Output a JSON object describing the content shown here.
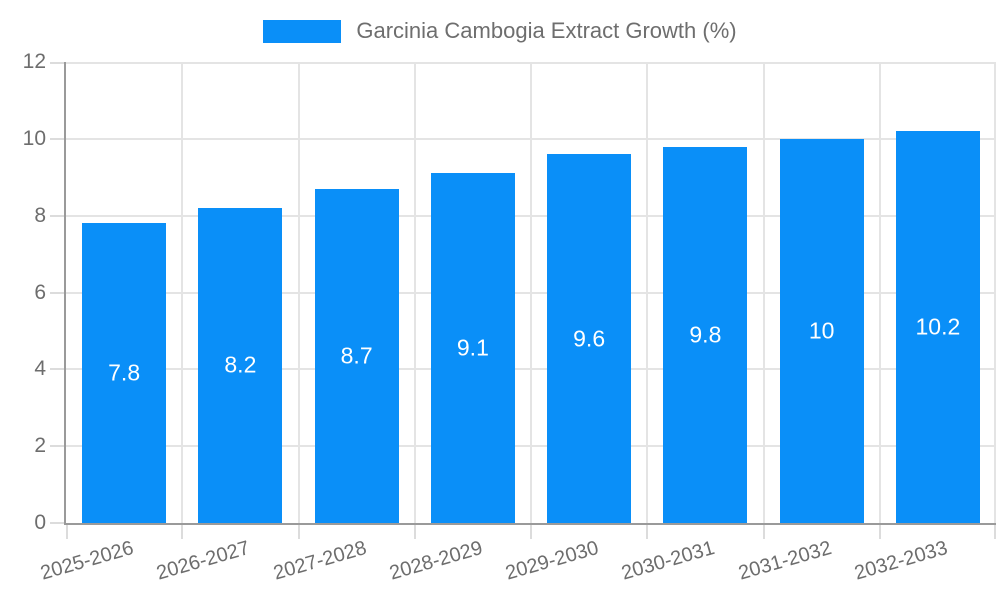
{
  "legend": {
    "label": "Garcinia Cambogia Extract Growth (%)"
  },
  "chart_data": {
    "type": "bar",
    "title": "Garcinia Cambogia Extract Growth (%)",
    "categories": [
      "2025-2026",
      "2026-2027",
      "2027-2028",
      "2028-2029",
      "2029-2030",
      "2030-2031",
      "2031-2032",
      "2032-2033"
    ],
    "values": [
      7.8,
      8.2,
      8.7,
      9.1,
      9.6,
      9.8,
      10,
      10.2
    ],
    "value_labels": [
      "7.8",
      "8.2",
      "8.7",
      "9.1",
      "9.6",
      "9.8",
      "10",
      "10.2"
    ],
    "xlabel": "",
    "ylabel": "",
    "ylim": [
      0,
      12
    ],
    "yticks": [
      0,
      2,
      4,
      6,
      8,
      10,
      12
    ],
    "grid": true,
    "legend_position": "top-center",
    "bar_color": "#0a8ff8",
    "bar_label_color": "#ffffff",
    "axis_color": "#9a9a9a",
    "grid_color": "#e4e4e4",
    "tick_text_color": "#6d6d6d"
  }
}
